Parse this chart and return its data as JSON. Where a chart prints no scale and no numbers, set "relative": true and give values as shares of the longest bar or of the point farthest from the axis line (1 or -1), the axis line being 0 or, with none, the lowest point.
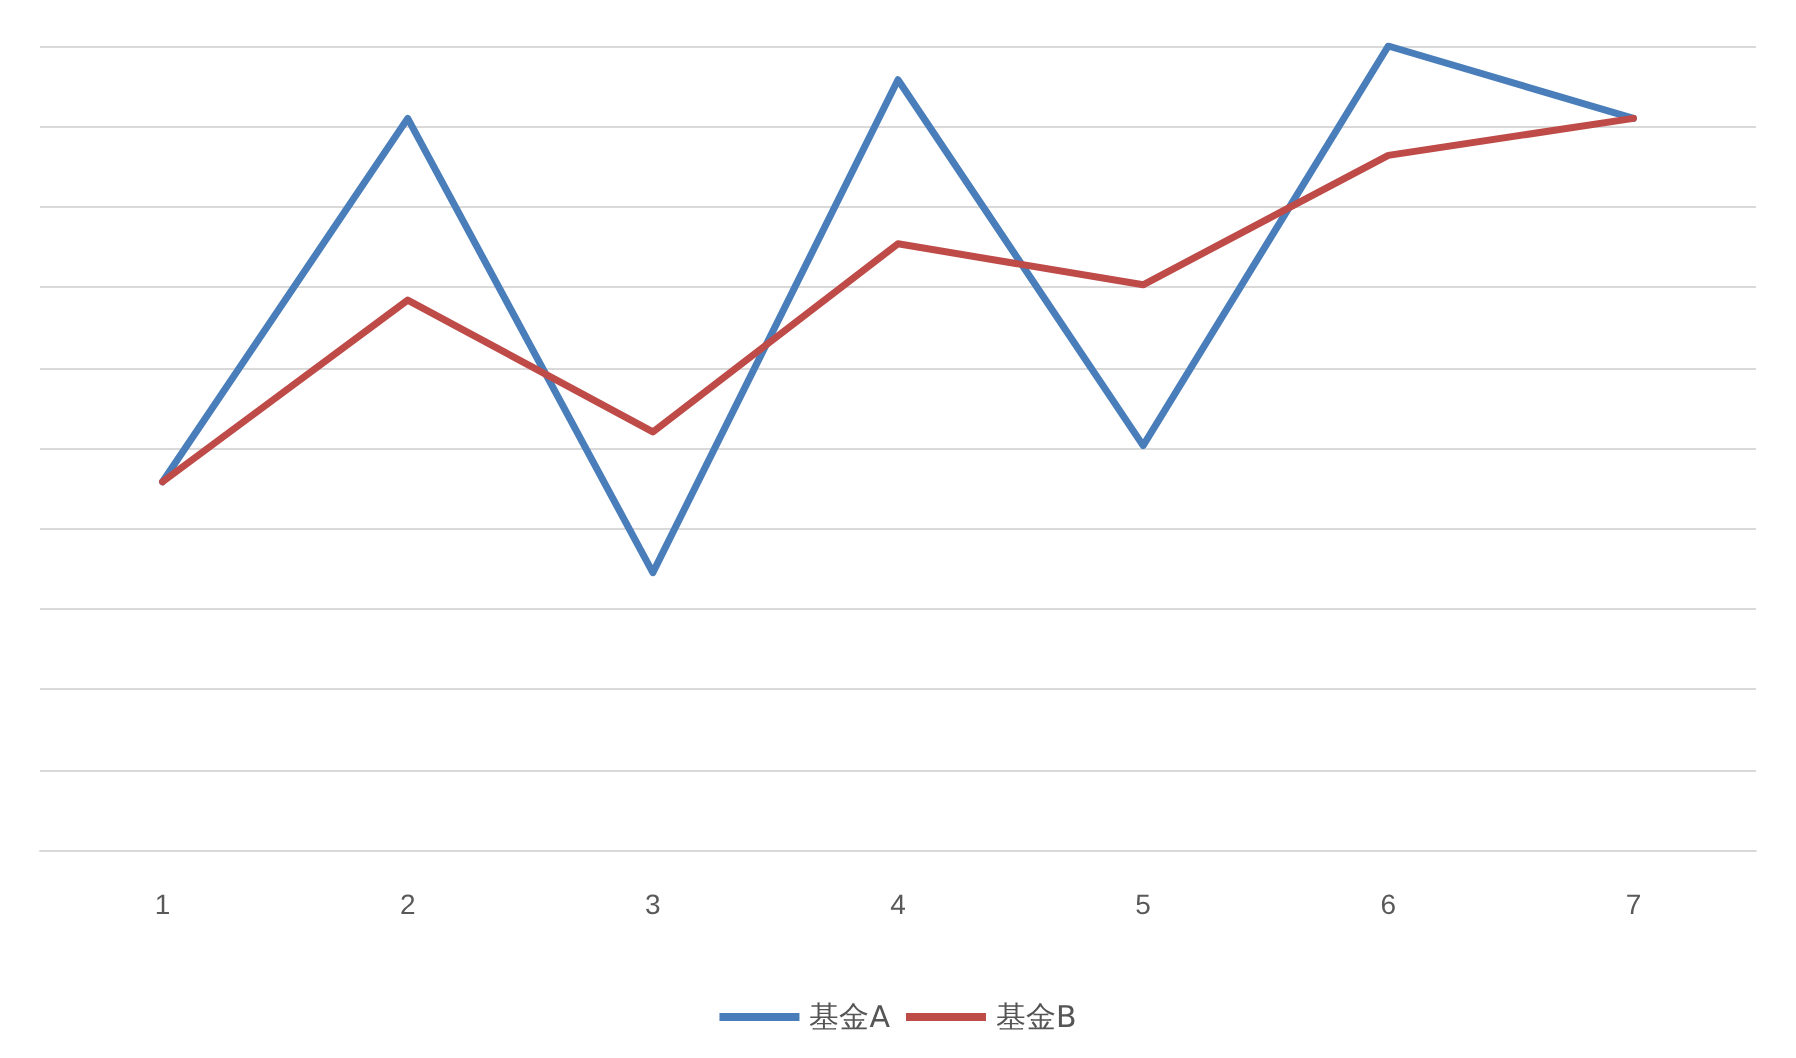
{
  "chart_data": {
    "type": "line",
    "relative": true,
    "categories": [
      "1",
      "2",
      "3",
      "4",
      "5",
      "6",
      "7"
    ],
    "series": [
      {
        "name": "基金A",
        "color": "#4a7ebb",
        "values": [
          0.458,
          0.91,
          0.345,
          0.958,
          0.503,
          1,
          0.91
        ]
      },
      {
        "name": "基金B",
        "color": "#be4b48",
        "values": [
          0.458,
          0.684,
          0.52,
          0.754,
          0.703,
          0.864,
          0.91
        ]
      }
    ],
    "grid": "y",
    "legend": "bottom",
    "marker": "none",
    "line_style": "solid"
  }
}
